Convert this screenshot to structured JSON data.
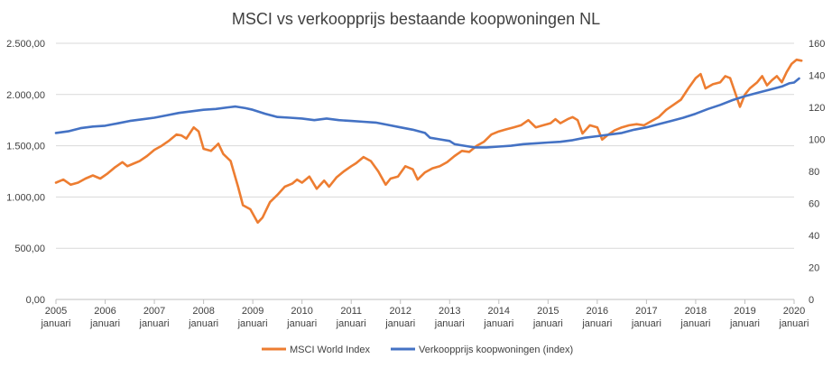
{
  "chart_data": {
    "type": "line",
    "title": "MSCI vs verkoopprijs bestaande koopwoningen NL",
    "colors": {
      "msci": "#ED7D31",
      "house": "#4472C4",
      "grid": "#D9D9D9",
      "text": "#404040"
    },
    "legend_position": "bottom",
    "grid": true,
    "y_left": {
      "min": 0,
      "max": 2500,
      "ticks": [
        "0,00",
        "500,00",
        "1.000,00",
        "1.500,00",
        "2.000,00",
        "2.500,00"
      ]
    },
    "y_right": {
      "min": 0,
      "max": 160,
      "ticks": [
        "0",
        "20",
        "40",
        "60",
        "80",
        "100",
        "120",
        "140",
        "160"
      ]
    },
    "x_range": [
      2005,
      2020
    ],
    "x_ticks": [
      {
        "year": "2005",
        "month": "januari"
      },
      {
        "year": "2006",
        "month": "januari"
      },
      {
        "year": "2007",
        "month": "januari"
      },
      {
        "year": "2008",
        "month": "januari"
      },
      {
        "year": "2009",
        "month": "januari"
      },
      {
        "year": "2010",
        "month": "januari"
      },
      {
        "year": "2011",
        "month": "januari"
      },
      {
        "year": "2012",
        "month": "januari"
      },
      {
        "year": "2013",
        "month": "januari"
      },
      {
        "year": "2014",
        "month": "januari"
      },
      {
        "year": "2015",
        "month": "januari"
      },
      {
        "year": "2016",
        "month": "januari"
      },
      {
        "year": "2017",
        "month": "januari"
      },
      {
        "year": "2018",
        "month": "januari"
      },
      {
        "year": "2019",
        "month": "januari"
      },
      {
        "year": "2020",
        "month": "januari"
      }
    ],
    "series": [
      {
        "name": "MSCI World Index",
        "axis": "left",
        "points": [
          [
            2005.0,
            1140
          ],
          [
            2005.15,
            1170
          ],
          [
            2005.3,
            1120
          ],
          [
            2005.45,
            1140
          ],
          [
            2005.6,
            1180
          ],
          [
            2005.75,
            1210
          ],
          [
            2005.9,
            1180
          ],
          [
            2006.05,
            1230
          ],
          [
            2006.2,
            1290
          ],
          [
            2006.35,
            1340
          ],
          [
            2006.45,
            1300
          ],
          [
            2006.55,
            1320
          ],
          [
            2006.7,
            1350
          ],
          [
            2006.85,
            1400
          ],
          [
            2007.0,
            1460
          ],
          [
            2007.15,
            1500
          ],
          [
            2007.3,
            1550
          ],
          [
            2007.45,
            1610
          ],
          [
            2007.55,
            1600
          ],
          [
            2007.65,
            1570
          ],
          [
            2007.8,
            1680
          ],
          [
            2007.9,
            1640
          ],
          [
            2008.0,
            1470
          ],
          [
            2008.15,
            1450
          ],
          [
            2008.3,
            1520
          ],
          [
            2008.4,
            1420
          ],
          [
            2008.55,
            1350
          ],
          [
            2008.7,
            1100
          ],
          [
            2008.8,
            920
          ],
          [
            2008.95,
            880
          ],
          [
            2009.1,
            750
          ],
          [
            2009.2,
            800
          ],
          [
            2009.35,
            950
          ],
          [
            2009.5,
            1020
          ],
          [
            2009.65,
            1100
          ],
          [
            2009.8,
            1130
          ],
          [
            2009.9,
            1170
          ],
          [
            2010.0,
            1140
          ],
          [
            2010.15,
            1200
          ],
          [
            2010.3,
            1080
          ],
          [
            2010.45,
            1160
          ],
          [
            2010.55,
            1100
          ],
          [
            2010.7,
            1190
          ],
          [
            2010.85,
            1250
          ],
          [
            2011.0,
            1300
          ],
          [
            2011.1,
            1330
          ],
          [
            2011.25,
            1390
          ],
          [
            2011.4,
            1350
          ],
          [
            2011.55,
            1250
          ],
          [
            2011.7,
            1120
          ],
          [
            2011.8,
            1180
          ],
          [
            2011.95,
            1200
          ],
          [
            2012.1,
            1300
          ],
          [
            2012.25,
            1270
          ],
          [
            2012.35,
            1170
          ],
          [
            2012.5,
            1240
          ],
          [
            2012.65,
            1280
          ],
          [
            2012.8,
            1300
          ],
          [
            2012.95,
            1340
          ],
          [
            2013.1,
            1400
          ],
          [
            2013.25,
            1450
          ],
          [
            2013.4,
            1440
          ],
          [
            2013.55,
            1500
          ],
          [
            2013.7,
            1540
          ],
          [
            2013.85,
            1610
          ],
          [
            2014.0,
            1640
          ],
          [
            2014.15,
            1660
          ],
          [
            2014.3,
            1680
          ],
          [
            2014.45,
            1700
          ],
          [
            2014.6,
            1750
          ],
          [
            2014.75,
            1680
          ],
          [
            2014.9,
            1700
          ],
          [
            2015.05,
            1720
          ],
          [
            2015.15,
            1760
          ],
          [
            2015.25,
            1720
          ],
          [
            2015.4,
            1760
          ],
          [
            2015.5,
            1780
          ],
          [
            2015.6,
            1750
          ],
          [
            2015.7,
            1620
          ],
          [
            2015.85,
            1700
          ],
          [
            2016.0,
            1680
          ],
          [
            2016.1,
            1560
          ],
          [
            2016.2,
            1600
          ],
          [
            2016.35,
            1650
          ],
          [
            2016.5,
            1680
          ],
          [
            2016.65,
            1700
          ],
          [
            2016.8,
            1710
          ],
          [
            2016.95,
            1700
          ],
          [
            2017.1,
            1740
          ],
          [
            2017.25,
            1780
          ],
          [
            2017.4,
            1850
          ],
          [
            2017.55,
            1900
          ],
          [
            2017.7,
            1950
          ],
          [
            2017.85,
            2060
          ],
          [
            2018.0,
            2160
          ],
          [
            2018.1,
            2200
          ],
          [
            2018.2,
            2060
          ],
          [
            2018.35,
            2100
          ],
          [
            2018.5,
            2120
          ],
          [
            2018.6,
            2180
          ],
          [
            2018.7,
            2160
          ],
          [
            2018.8,
            2020
          ],
          [
            2018.9,
            1880
          ],
          [
            2019.0,
            2000
          ],
          [
            2019.1,
            2060
          ],
          [
            2019.25,
            2120
          ],
          [
            2019.35,
            2180
          ],
          [
            2019.45,
            2090
          ],
          [
            2019.55,
            2140
          ],
          [
            2019.65,
            2180
          ],
          [
            2019.75,
            2120
          ],
          [
            2019.85,
            2220
          ],
          [
            2019.95,
            2300
          ],
          [
            2020.05,
            2340
          ],
          [
            2020.15,
            2330
          ]
        ]
      },
      {
        "name": "Verkoopprijs koopwoningen (index)",
        "axis": "right",
        "points": [
          [
            2005.0,
            104
          ],
          [
            2005.25,
            105
          ],
          [
            2005.5,
            107
          ],
          [
            2005.75,
            108
          ],
          [
            2006.0,
            108.5
          ],
          [
            2006.25,
            110
          ],
          [
            2006.5,
            111.5
          ],
          [
            2006.75,
            112.5
          ],
          [
            2007.0,
            113.5
          ],
          [
            2007.25,
            115
          ],
          [
            2007.5,
            116.5
          ],
          [
            2007.75,
            117.5
          ],
          [
            2008.0,
            118.5
          ],
          [
            2008.25,
            119
          ],
          [
            2008.5,
            120
          ],
          [
            2008.65,
            120.5
          ],
          [
            2008.85,
            119.5
          ],
          [
            2009.0,
            118.5
          ],
          [
            2009.25,
            116
          ],
          [
            2009.5,
            114
          ],
          [
            2009.75,
            113.5
          ],
          [
            2010.0,
            113
          ],
          [
            2010.25,
            112
          ],
          [
            2010.5,
            113
          ],
          [
            2010.75,
            112
          ],
          [
            2011.0,
            111.5
          ],
          [
            2011.25,
            111
          ],
          [
            2011.5,
            110.5
          ],
          [
            2011.75,
            109
          ],
          [
            2012.0,
            107.5
          ],
          [
            2012.25,
            106
          ],
          [
            2012.5,
            104
          ],
          [
            2012.6,
            101
          ],
          [
            2012.8,
            100
          ],
          [
            2013.0,
            99
          ],
          [
            2013.1,
            97
          ],
          [
            2013.3,
            96
          ],
          [
            2013.5,
            95
          ],
          [
            2013.75,
            95
          ],
          [
            2014.0,
            95.5
          ],
          [
            2014.25,
            96
          ],
          [
            2014.5,
            97
          ],
          [
            2014.75,
            97.5
          ],
          [
            2015.0,
            98
          ],
          [
            2015.25,
            98.5
          ],
          [
            2015.5,
            99.5
          ],
          [
            2015.75,
            101
          ],
          [
            2016.0,
            102
          ],
          [
            2016.25,
            103
          ],
          [
            2016.5,
            104
          ],
          [
            2016.75,
            106
          ],
          [
            2017.0,
            107.5
          ],
          [
            2017.25,
            109.5
          ],
          [
            2017.5,
            111.5
          ],
          [
            2017.75,
            113.5
          ],
          [
            2018.0,
            116
          ],
          [
            2018.25,
            119
          ],
          [
            2018.5,
            121.5
          ],
          [
            2018.75,
            124.5
          ],
          [
            2019.0,
            127
          ],
          [
            2019.25,
            129
          ],
          [
            2019.5,
            131
          ],
          [
            2019.75,
            133
          ],
          [
            2019.9,
            135
          ],
          [
            2020.0,
            135.5
          ],
          [
            2020.1,
            138
          ]
        ]
      }
    ]
  }
}
